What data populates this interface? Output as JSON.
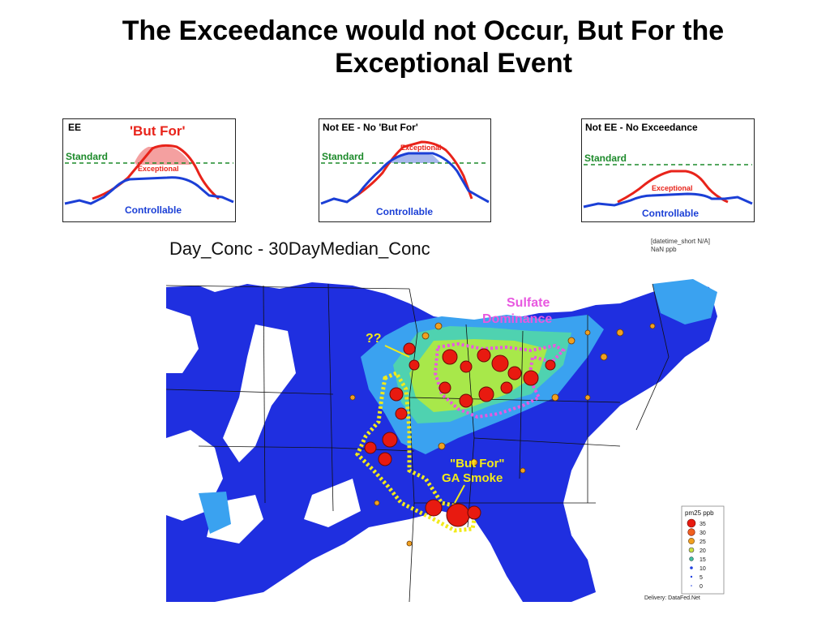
{
  "title": {
    "line1": "The Exceedance would not Occur, But For the",
    "line2": "Exceptional Event"
  },
  "panels": [
    {
      "heading": "EE",
      "callout": "'But For'",
      "standard": "Standard",
      "exceptional": "Exceptional",
      "controllable": "Controllable"
    },
    {
      "heading": "Not EE - No 'But For'",
      "standard": "Standard",
      "exceptional": "Exceptional",
      "controllable": "Controllable"
    },
    {
      "heading": "Not EE - No Exceedance",
      "standard": "Standard",
      "exceptional": "Exceptional",
      "controllable": "Controllable"
    }
  ],
  "map": {
    "title": "Day_Conc - 30DayMedian_Conc",
    "info_line1": "[datetime_short N/A]",
    "info_line2": "NaN ppb",
    "annotation_sulfate_1": "Sulfate",
    "annotation_sulfate_2": "Dominance",
    "annotation_unknown": "??",
    "annotation_butfor_1": "\"But For\"",
    "annotation_butfor_2": "GA Smoke",
    "legend": {
      "title": "pm25 ppb",
      "items": [
        "35",
        "30",
        "25",
        "20",
        "15",
        "10",
        "5",
        "0"
      ]
    },
    "credit": "Delivery: DataFed.Net"
  },
  "colors": {
    "ee_red": "#e8231a",
    "controllable_blue": "#1b3fd6",
    "standard_green": "#1c8a2a",
    "map_blue": "#1f2fe0",
    "callout_pink": "#e858e0",
    "outline_yellow": "#f2ea1a"
  }
}
